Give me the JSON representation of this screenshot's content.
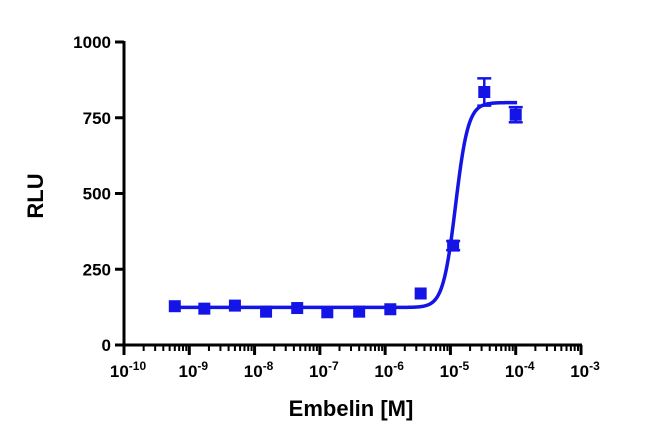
{
  "chart_data": {
    "type": "scatter",
    "title": "",
    "xlabel": "Embelin [M]",
    "ylabel": "RLU",
    "x_scale": "log10",
    "xlim": [
      1e-10,
      0.001
    ],
    "ylim": [
      0,
      1000
    ],
    "x_tick_labels": [
      {
        "base": "10",
        "exp": "-10"
      },
      {
        "base": "10",
        "exp": "-9"
      },
      {
        "base": "10",
        "exp": "-8"
      },
      {
        "base": "10",
        "exp": "-7"
      },
      {
        "base": "10",
        "exp": "-6"
      },
      {
        "base": "10",
        "exp": "-5"
      },
      {
        "base": "10",
        "exp": "-4"
      },
      {
        "base": "10",
        "exp": "-3"
      }
    ],
    "y_ticks": [
      "0",
      "250",
      "500",
      "750",
      "1000"
    ],
    "grid": false,
    "legend": "none",
    "color": "#1414e6",
    "series": [
      {
        "x": [
          6e-10,
          1.7e-09,
          5e-09,
          1.5e-08,
          4.5e-08,
          1.3e-07,
          4e-07,
          1.2e-06,
          3.5e-06,
          1.1e-05,
          3.3e-05,
          0.0001
        ],
        "y": [
          128,
          120,
          130,
          110,
          122,
          108,
          110,
          118,
          170,
          328,
          835,
          760
        ],
        "error": [
          0,
          0,
          0,
          0,
          0,
          0,
          0,
          0,
          0,
          15,
          45,
          25
        ]
      }
    ],
    "fit": {
      "model": "sigmoidal",
      "bottom": 124,
      "top": 800,
      "ec50": 1.2e-05,
      "hill": 4.5
    }
  }
}
